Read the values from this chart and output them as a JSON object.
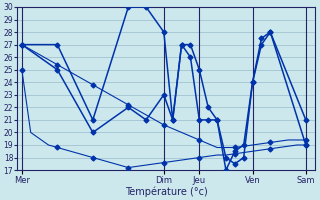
{
  "xlabel": "Température (°c)",
  "bg_color": "#cce8ec",
  "line_color": "#0033aa",
  "grid_color": "#99bbcc",
  "axis_color": "#222266",
  "ylim": [
    17,
    30
  ],
  "yticks": [
    17,
    18,
    19,
    20,
    21,
    22,
    23,
    24,
    25,
    26,
    27,
    28,
    29,
    30
  ],
  "day_labels": [
    "Mer",
    "Dim",
    "Jeu",
    "Ven",
    "Sam"
  ],
  "day_positions": [
    0,
    16,
    20,
    26,
    32
  ],
  "xlim": [
    -0.5,
    33
  ],
  "line1_x": [
    0,
    1,
    2,
    3,
    4,
    5,
    6,
    7,
    8,
    9,
    10,
    11,
    12,
    13,
    14,
    15,
    16,
    17,
    18,
    19,
    20,
    21,
    22,
    23,
    24,
    25,
    26,
    27,
    28,
    29,
    30,
    31,
    32
  ],
  "line1_y": [
    27,
    26.6,
    26.2,
    25.8,
    25.4,
    25.0,
    24.6,
    24.2,
    23.8,
    23.4,
    23.0,
    22.6,
    22.2,
    21.8,
    21.4,
    21.0,
    20.6,
    20.3,
    20.0,
    19.7,
    19.4,
    19.1,
    18.8,
    18.8,
    18.8,
    18.9,
    19.0,
    19.1,
    19.2,
    19.3,
    19.4,
    19.4,
    19.4
  ],
  "line2_x": [
    0,
    1,
    2,
    3,
    4,
    5,
    6,
    7,
    8,
    9,
    10,
    11,
    12,
    13,
    14,
    15,
    16,
    17,
    18,
    19,
    20,
    21,
    22,
    23,
    24,
    25,
    26,
    27,
    28,
    29,
    30,
    31,
    32
  ],
  "line2_y": [
    25,
    20,
    19.5,
    19,
    18.8,
    18.6,
    18.4,
    18.2,
    18,
    17.8,
    17.6,
    17.4,
    17.2,
    17.3,
    17.4,
    17.5,
    17.6,
    17.7,
    17.8,
    17.9,
    18.0,
    18.1,
    18.2,
    18.2,
    18.3,
    18.4,
    18.5,
    18.6,
    18.7,
    18.8,
    18.9,
    19.0,
    19.0
  ],
  "line3_x": [
    0,
    4,
    8,
    12,
    14,
    16,
    17,
    18,
    19,
    20,
    21,
    22,
    23,
    24,
    25,
    26,
    27,
    28,
    32
  ],
  "line3_y": [
    27,
    27,
    21,
    30,
    30,
    28,
    21,
    27,
    27,
    25,
    22,
    21,
    18,
    17.5,
    18,
    24,
    27.5,
    28,
    19
  ],
  "line4_x": [
    0,
    4,
    8,
    12,
    14,
    16,
    17,
    18,
    19,
    20,
    21,
    22,
    23,
    24,
    25,
    26,
    27,
    28,
    32
  ],
  "line4_y": [
    27,
    25,
    20,
    22,
    21,
    23,
    21,
    27,
    26,
    21,
    21,
    21,
    17,
    18.5,
    19,
    24,
    27,
    28,
    21
  ]
}
